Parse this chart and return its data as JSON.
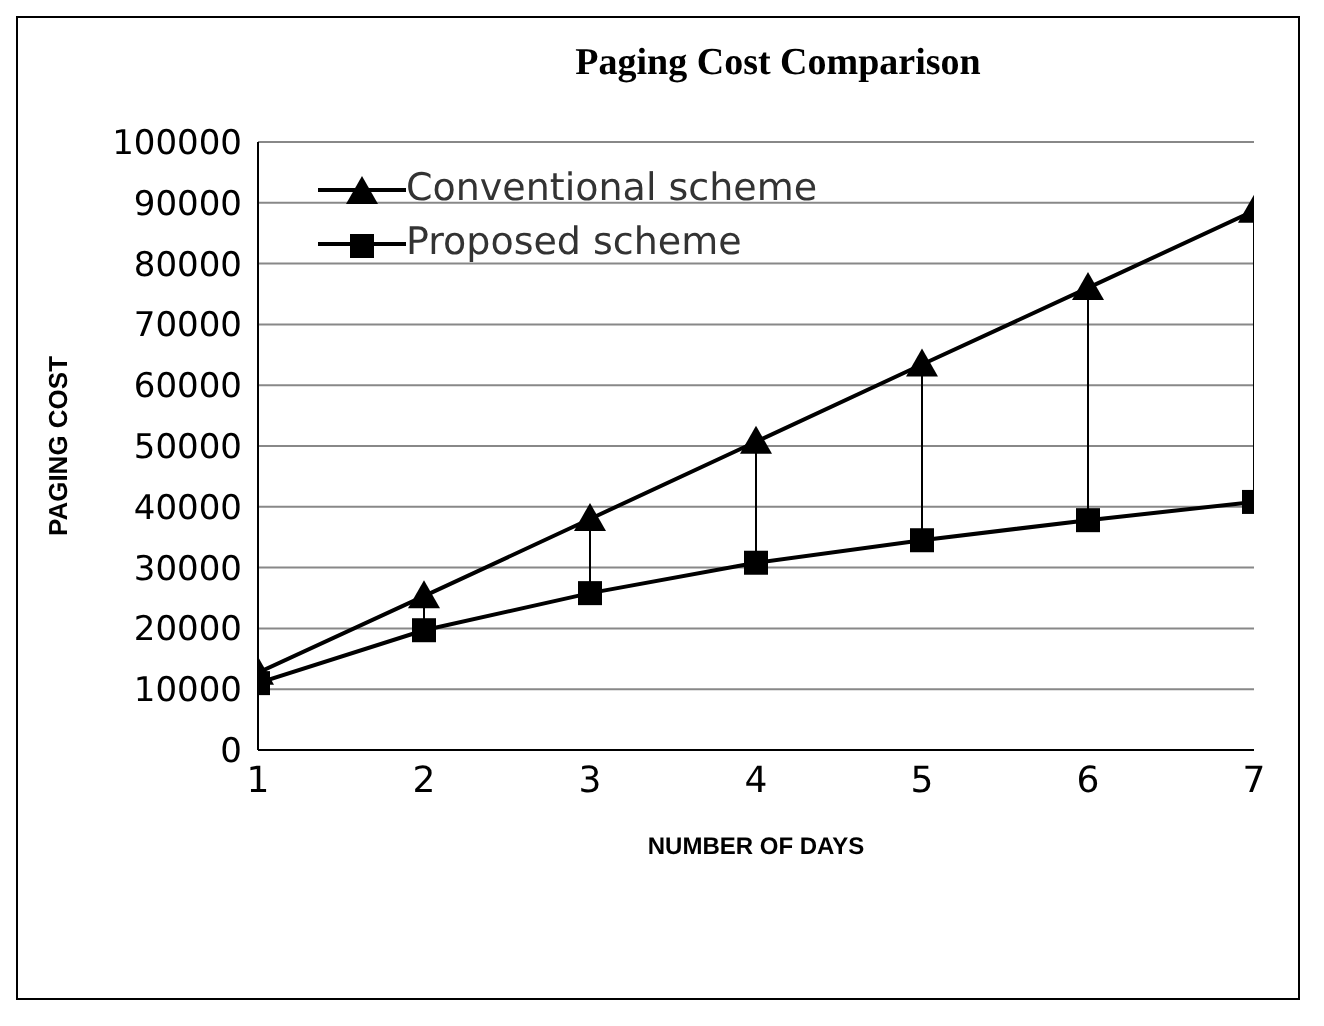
{
  "chart_data": {
    "type": "line",
    "title": "Paging Cost Comparison",
    "xlabel": "NUMBER OF DAYS",
    "ylabel": "PAGING COST",
    "x": [
      1,
      2,
      3,
      4,
      5,
      6,
      7
    ],
    "series": [
      {
        "name": "Conventional scheme",
        "color": "#000000",
        "marker": "triangle",
        "values": [
          12700,
          25300,
          38000,
          50700,
          63400,
          76000,
          88700
        ]
      },
      {
        "name": "Proposed scheme",
        "color": "#000000",
        "marker": "square",
        "values": [
          11000,
          19700,
          25800,
          30800,
          34500,
          37800,
          40800
        ]
      }
    ],
    "xlim": [
      1,
      7
    ],
    "xticks": [
      1,
      2,
      3,
      4,
      5,
      6,
      7
    ],
    "ylim": [
      0,
      100000
    ],
    "yticks": [
      0,
      10000,
      20000,
      30000,
      40000,
      50000,
      60000,
      70000,
      80000,
      90000,
      100000
    ],
    "grid": "y",
    "legend": "top left",
    "line_style": "solid"
  }
}
